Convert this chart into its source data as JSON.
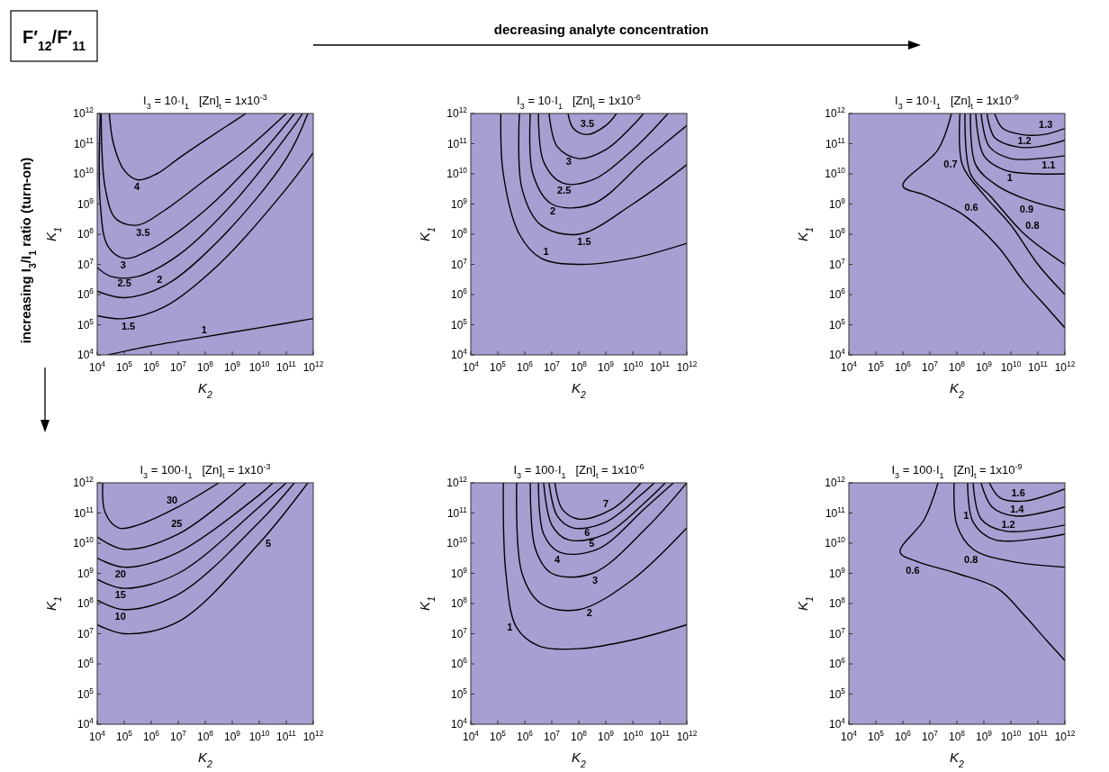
{
  "chart_data": [
    {
      "type": "line",
      "title": "I$_{3}$ = 10·I$_{1}$   [Zn]$_{t}$ = 1x10$^{-3}$",
      "xlabel": "K$_{2}$",
      "ylabel": "K$_{1}$",
      "log": "xy",
      "xlim": [
        10000.0,
        1000000000000.0
      ],
      "ylim": [
        10000.0,
        1000000000000.0
      ],
      "xticks": [
        {
          "value": 10000.0,
          "label": "10$^{4}$"
        },
        {
          "value": 100000.0,
          "label": "10$^{5}$"
        },
        {
          "value": 1000000.0,
          "label": "10$^{6}$"
        },
        {
          "value": 10000000.0,
          "label": "10$^{7}$"
        },
        {
          "value": 100000000.0,
          "label": "10$^{8}$"
        },
        {
          "value": 1000000000.0,
          "label": "10$^{9}$"
        },
        {
          "value": 10000000000.0,
          "label": "10$^{10}$"
        },
        {
          "value": 100000000000.0,
          "label": "10$^{11}$"
        },
        {
          "value": 1000000000000.0,
          "label": "10$^{12}$"
        }
      ],
      "yticks": [
        {
          "value": 10000.0,
          "label": "10$^{4}$"
        },
        {
          "value": 100000.0,
          "label": "10$^{5}$"
        },
        {
          "value": 1000000.0,
          "label": "10$^{6}$"
        },
        {
          "value": 10000000.0,
          "label": "10$^{7}$"
        },
        {
          "value": 100000000.0,
          "label": "10$^{8}$"
        },
        {
          "value": 1000000000.0,
          "label": "10$^{9}$"
        },
        {
          "value": 10000000000.0,
          "label": "10$^{10}$"
        },
        {
          "value": 100000000000.0,
          "label": "10$^{11}$"
        },
        {
          "value": 1000000000000.0,
          "label": "10$^{12}$"
        }
      ],
      "annotations": [
        "F′$_{12}$/F′$_{11}$",
        "decreasing analyte concentration",
        "increasing I$_{3}$/I$_{1}$ ratio (turn-on)"
      ],
      "series": [
        {
          "name": "4",
          "color": "#000000",
          "x": [
            28000.0,
            40000.0,
            100000.0,
            320000.0,
            1600000.0,
            10000000.0,
            100000000.0,
            3200000000.0
          ],
          "values": [
            1000000000000.0,
            100000000000.0,
            13000000000.0,
            6300000000.0,
            10000000000.0,
            32000000000.0,
            130000000000.0,
            1000000000000.0
          ]
        },
        {
          "name": "3.5",
          "color": "#000000",
          "x": [
            14000.0,
            20000.0,
            50000.0,
            320000.0,
            3200000.0,
            100000000.0,
            3200000000.0,
            100000000000.0
          ],
          "values": [
            1000000000000.0,
            3200000000.0,
            320000000.0,
            200000000.0,
            630000000.0,
            6300000000.0,
            63000000000.0,
            1000000000000.0
          ]
        },
        {
          "name": "3",
          "color": "#000000",
          "x": [
            13000.0,
            13000.0,
            25000.0,
            100000.0,
            1000000.0,
            100000000.0,
            10000000000.0,
            200000000000.0
          ],
          "values": [
            1000000000000.0,
            1000000000.0,
            40000000.0,
            16000000.0,
            32000000.0,
            630000000.0,
            40000000000.0,
            1000000000000.0
          ]
        },
        {
          "name": "2.5",
          "color": "#000000",
          "x": [
            10000.0,
            32000.0,
            320000.0,
            10000000.0,
            1000000000.0,
            200000000000.0,
            400000000000.0
          ],
          "values": [
            7900000.0,
            4000000.0,
            4000000.0,
            20000000.0,
            1000000000.0,
            400000000000.0,
            1000000000000.0
          ]
        },
        {
          "name": "2",
          "color": "#000000",
          "x": [
            10000.0,
            100000.0,
            3200000.0,
            320000000.0,
            100000000000.0,
            630000000000.0
          ],
          "values": [
            1300000.0,
            790000.0,
            2000000.0,
            63000000.0,
            32000000000.0,
            1000000000000.0
          ]
        },
        {
          "name": "1.5",
          "color": "#000000",
          "x": [
            10000.0,
            100000.0,
            3200000.0,
            320000000.0,
            100000000000.0,
            1000000000000.0
          ],
          "values": [
            200000.0,
            160000.0,
            400000.0,
            10000000.0,
            3200000000.0,
            50000000000.0
          ]
        },
        {
          "name": "1",
          "color": "#000000",
          "x": [
            25000.0,
            1000000.0,
            100000000.0,
            10000000000.0,
            1000000000000.0
          ],
          "values": [
            10000.0,
            20000.0,
            40000.0,
            79000.0,
            160000.0
          ]
        }
      ]
    },
    {
      "type": "line",
      "title": "I$_{3}$ = 10·I$_{1}$   [Zn]$_{t}$ = 1x10$^{-6}$",
      "xlabel": "K$_{2}$",
      "ylabel": "K$_{1}$",
      "log": "xy",
      "xlim": [
        10000.0,
        1000000000000.0
      ],
      "ylim": [
        10000.0,
        1000000000000.0
      ],
      "xticks": [
        {
          "value": 10000.0,
          "label": "10$^{4}$"
        },
        {
          "value": 100000.0,
          "label": "10$^{5}$"
        },
        {
          "value": 1000000.0,
          "label": "10$^{6}$"
        },
        {
          "value": 10000000.0,
          "label": "10$^{7}$"
        },
        {
          "value": 100000000.0,
          "label": "10$^{8}$"
        },
        {
          "value": 1000000000.0,
          "label": "10$^{9}$"
        },
        {
          "value": 10000000000.0,
          "label": "10$^{10}$"
        },
        {
          "value": 100000000000.0,
          "label": "10$^{11}$"
        },
        {
          "value": 1000000000000.0,
          "label": "10$^{12}$"
        }
      ],
      "yticks": [
        {
          "value": 10000.0,
          "label": "10$^{4}$"
        },
        {
          "value": 100000.0,
          "label": "10$^{5}$"
        },
        {
          "value": 1000000.0,
          "label": "10$^{6}$"
        },
        {
          "value": 10000000.0,
          "label": "10$^{7}$"
        },
        {
          "value": 100000000.0,
          "label": "10$^{8}$"
        },
        {
          "value": 1000000000.0,
          "label": "10$^{9}$"
        },
        {
          "value": 10000000000.0,
          "label": "10$^{10}$"
        },
        {
          "value": 100000000000.0,
          "label": "10$^{11}$"
        },
        {
          "value": 1000000000000.0,
          "label": "10$^{12}$"
        }
      ],
      "series": [
        {
          "name": "3.5",
          "color": "#000000",
          "x": [
            40000000.0,
            63000000.0,
            200000000.0,
            1000000000.0,
            2500000000.0
          ],
          "values": [
            1000000000000.0,
            320000000000.0,
            200000000000.0,
            400000000000.0,
            1000000000000.0
          ]
        },
        {
          "name": "3",
          "color": "#000000",
          "x": [
            7900000.0,
            16000000.0,
            100000000.0,
            1000000000.0,
            10000000000.0,
            25000000000.0
          ],
          "values": [
            1000000000000.0,
            79000000000.0,
            32000000000.0,
            63000000000.0,
            400000000000.0,
            1000000000000.0
          ]
        },
        {
          "name": "2.5",
          "color": "#000000",
          "x": [
            3200000.0,
            5000000.0,
            25000000.0,
            320000000.0,
            10000000000.0,
            200000000000.0
          ],
          "values": [
            1000000000000.0,
            25000000000.0,
            5000000000.0,
            6300000000.0,
            63000000000.0,
            1000000000000.0
          ]
        },
        {
          "name": "2",
          "color": "#000000",
          "x": [
            1600000.0,
            2000000.0,
            10000000.0,
            320000000.0,
            32000000000.0,
            1000000000000.0
          ],
          "values": [
            1000000000000.0,
            10000000000.0,
            1000000000.0,
            1000000000.0,
            32000000000.0,
            400000000000.0
          ]
        },
        {
          "name": "1.5",
          "color": "#000000",
          "x": [
            630000.0,
            790000.0,
            4000000.0,
            100000000.0,
            10000000000.0,
            1000000000000.0
          ],
          "values": [
            1000000000000.0,
            3200000000.0,
            200000000.0,
            100000000.0,
            1000000000.0,
            20000000000.0
          ]
        },
        {
          "name": "1",
          "color": "#000000",
          "x": [
            130000.0,
            160000.0,
            630000.0,
            4000000.0,
            100000000.0,
            10000000000.0,
            1000000000000.0
          ],
          "values": [
            1000000000000.0,
            10000000000.0,
            100000000.0,
            16000000.0,
            10000000.0,
            16000000.0,
            50000000.0
          ]
        }
      ]
    },
    {
      "type": "line",
      "title": "I$_{3}$ = 10·I$_{1}$   [Zn]$_{t}$ = 1x10$^{-9}$",
      "xlabel": "K$_{2}$",
      "ylabel": "K$_{1}$",
      "log": "xy",
      "xlim": [
        10000.0,
        1000000000000.0
      ],
      "ylim": [
        10000.0,
        1000000000000.0
      ],
      "xticks": [
        {
          "value": 10000.0,
          "label": "10$^{4}$"
        },
        {
          "value": 100000.0,
          "label": "10$^{5}$"
        },
        {
          "value": 1000000.0,
          "label": "10$^{6}$"
        },
        {
          "value": 10000000.0,
          "label": "10$^{7}$"
        },
        {
          "value": 100000000.0,
          "label": "10$^{8}$"
        },
        {
          "value": 1000000000.0,
          "label": "10$^{9}$"
        },
        {
          "value": 10000000000.0,
          "label": "10$^{10}$"
        },
        {
          "value": 100000000000.0,
          "label": "10$^{11}$"
        },
        {
          "value": 1000000000000.0,
          "label": "10$^{12}$"
        }
      ],
      "yticks": [
        {
          "value": 10000.0,
          "label": "10$^{4}$"
        },
        {
          "value": 100000.0,
          "label": "10$^{5}$"
        },
        {
          "value": 1000000.0,
          "label": "10$^{6}$"
        },
        {
          "value": 10000000.0,
          "label": "10$^{7}$"
        },
        {
          "value": 100000000.0,
          "label": "10$^{8}$"
        },
        {
          "value": 1000000000.0,
          "label": "10$^{9}$"
        },
        {
          "value": 10000000000.0,
          "label": "10$^{10}$"
        },
        {
          "value": 100000000000.0,
          "label": "10$^{11}$"
        },
        {
          "value": 1000000000000.0,
          "label": "10$^{12}$"
        }
      ],
      "series": [
        {
          "name": "1.3",
          "color": "#000000",
          "x": [
            2500000000.0,
            5000000000.0,
            25000000000.0,
            160000000000.0,
            1000000000000.0
          ],
          "values": [
            1000000000000.0,
            320000000000.0,
            200000000000.0,
            200000000000.0,
            320000000000.0
          ]
        },
        {
          "name": "1.2",
          "color": "#000000",
          "x": [
            1300000000.0,
            2500000000.0,
            16000000000.0,
            100000000000.0,
            1000000000000.0
          ],
          "values": [
            1000000000000.0,
            160000000000.0,
            79000000000.0,
            79000000000.0,
            130000000000.0
          ]
        },
        {
          "name": "1.1",
          "color": "#000000",
          "x": [
            790000000.0,
            1600000000.0,
            10000000000.0,
            100000000000.0,
            1000000000000.0
          ],
          "values": [
            1000000000000.0,
            79000000000.0,
            32000000000.0,
            32000000000.0,
            40000000000.0
          ]
        },
        {
          "name": "1",
          "color": "#000000",
          "x": [
            500000000.0,
            1000000000.0,
            6300000000.0,
            100000000000.0,
            1000000000000.0
          ],
          "values": [
            1000000000000.0,
            40000000000.0,
            13000000000.0,
            10000000000.0,
            10000000000.0
          ]
        },
        {
          "name": "0.9",
          "color": "#000000",
          "x": [
            320000000.0,
            500000000.0,
            3200000000.0,
            50000000000.0,
            1000000000000.0
          ],
          "values": [
            1000000000000.0,
            20000000000.0,
            4000000000.0,
            1300000000.0,
            630000000.0
          ]
        },
        {
          "name": "0.8",
          "color": "#000000",
          "x": [
            200000000.0,
            320000000.0,
            2000000000.0,
            32000000000.0,
            1000000000000.0
          ],
          "values": [
            1000000000000.0,
            10000000000.0,
            1600000000.0,
            100000000.0,
            10000000.0
          ]
        },
        {
          "name": "0.7",
          "color": "#000000",
          "x": [
            130000000.0,
            160000000.0,
            1000000000.0,
            10000000000.0,
            100000000000.0,
            1000000000000.0
          ],
          "values": [
            1000000000000.0,
            20000000000.0,
            2000000000.0,
            200000000.0,
            10000000.0,
            1000000.0
          ]
        },
        {
          "name": "0.6",
          "color": "#000000",
          "x": [
            63000000.0,
            20000000.0,
            1000000.0,
            6300000.0,
            200000000.0,
            3200000000.0,
            32000000000.0,
            200000000000.0,
            1000000000000.0
          ],
          "values": [
            1000000000000.0,
            63000000000.0,
            4000000000.0,
            2000000000.0,
            400000000.0,
            40000000.0,
            2500000.0,
            400000.0,
            79000.0
          ]
        }
      ]
    },
    {
      "type": "line",
      "title": "I$_{3}$ = 100·I$_{1}$   [Zn]$_{t}$ = 1x10$^{-3}$",
      "xlabel": "K$_{2}$",
      "ylabel": "K$_{1}$",
      "log": "xy",
      "xlim": [
        10000.0,
        1000000000000.0
      ],
      "ylim": [
        10000.0,
        1000000000000.0
      ],
      "xticks": [
        {
          "value": 10000.0,
          "label": "10$^{4}$"
        },
        {
          "value": 100000.0,
          "label": "10$^{5}$"
        },
        {
          "value": 1000000.0,
          "label": "10$^{6}$"
        },
        {
          "value": 10000000.0,
          "label": "10$^{7}$"
        },
        {
          "value": 100000000.0,
          "label": "10$^{8}$"
        },
        {
          "value": 1000000000.0,
          "label": "10$^{9}$"
        },
        {
          "value": 10000000000.0,
          "label": "10$^{10}$"
        },
        {
          "value": 100000000000.0,
          "label": "10$^{11}$"
        },
        {
          "value": 1000000000000.0,
          "label": "10$^{12}$"
        }
      ],
      "yticks": [
        {
          "value": 10000.0,
          "label": "10$^{4}$"
        },
        {
          "value": 100000.0,
          "label": "10$^{5}$"
        },
        {
          "value": 1000000.0,
          "label": "10$^{6}$"
        },
        {
          "value": 10000000.0,
          "label": "10$^{7}$"
        },
        {
          "value": 100000000.0,
          "label": "10$^{8}$"
        },
        {
          "value": 1000000000.0,
          "label": "10$^{9}$"
        },
        {
          "value": 10000000000.0,
          "label": "10$^{10}$"
        },
        {
          "value": 100000000000.0,
          "label": "10$^{11}$"
        },
        {
          "value": 1000000000000.0,
          "label": "10$^{12}$"
        }
      ],
      "series": [
        {
          "name": "30",
          "color": "#000000",
          "x": [
            16000.0,
            20000.0,
            63000.0,
            320000.0,
            10000000.0,
            320000000.0
          ],
          "values": [
            1000000000000.0,
            100000000000.0,
            32000000000.0,
            40000000000.0,
            160000000000.0,
            1000000000000.0
          ]
        },
        {
          "name": "25",
          "color": "#000000",
          "x": [
            10000.0,
            100000.0,
            10000000.0,
            3200000000.0
          ],
          "values": [
            16000000000.0,
            6300000000.0,
            20000000000.0,
            1000000000000.0
          ]
        },
        {
          "name": "20",
          "color": "#000000",
          "x": [
            10000.0,
            100000.0,
            10000000.0,
            10000000000.0,
            32000000000.0
          ],
          "values": [
            3200000000.0,
            1600000000.0,
            5000000000.0,
            400000000000.0,
            1000000000000.0
          ]
        },
        {
          "name": "15",
          "color": "#000000",
          "x": [
            10000.0,
            100000.0,
            10000000.0,
            10000000000.0,
            100000000000.0
          ],
          "values": [
            630000000.0,
            320000000.0,
            1000000000.0,
            160000000000.0,
            1000000000000.0
          ]
        },
        {
          "name": "10",
          "color": "#000000",
          "x": [
            10000.0,
            100000.0,
            10000000.0,
            10000000000.0,
            200000000000.0
          ],
          "values": [
            130000000.0,
            63000000.0,
            200000000.0,
            50000000000.0,
            1000000000000.0
          ]
        },
        {
          "name": "5",
          "color": "#000000",
          "x": [
            10000.0,
            100000.0,
            10000000.0,
            10000000000.0,
            630000000000.0
          ],
          "values": [
            20000000.0,
            10000000.0,
            25000000.0,
            10000000000.0,
            1000000000000.0
          ]
        }
      ]
    },
    {
      "type": "line",
      "title": "I$_{3}$ = 100·I$_{1}$   [Zn]$_{t}$ = 1x10$^{-6}$",
      "xlabel": "K$_{2}$",
      "ylabel": "K$_{1}$",
      "log": "xy",
      "xlim": [
        10000.0,
        1000000000000.0
      ],
      "ylim": [
        10000.0,
        1000000000000.0
      ],
      "xticks": [
        {
          "value": 10000.0,
          "label": "10$^{4}$"
        },
        {
          "value": 100000.0,
          "label": "10$^{5}$"
        },
        {
          "value": 1000000.0,
          "label": "10$^{6}$"
        },
        {
          "value": 10000000.0,
          "label": "10$^{7}$"
        },
        {
          "value": 100000000.0,
          "label": "10$^{8}$"
        },
        {
          "value": 1000000000.0,
          "label": "10$^{9}$"
        },
        {
          "value": 10000000000.0,
          "label": "10$^{10}$"
        },
        {
          "value": 100000000000.0,
          "label": "10$^{11}$"
        },
        {
          "value": 1000000000000.0,
          "label": "10$^{12}$"
        }
      ],
      "yticks": [
        {
          "value": 10000.0,
          "label": "10$^{4}$"
        },
        {
          "value": 100000.0,
          "label": "10$^{5}$"
        },
        {
          "value": 1000000.0,
          "label": "10$^{6}$"
        },
        {
          "value": 10000000.0,
          "label": "10$^{7}$"
        },
        {
          "value": 100000000.0,
          "label": "10$^{8}$"
        },
        {
          "value": 1000000000.0,
          "label": "10$^{9}$"
        },
        {
          "value": 10000000000.0,
          "label": "10$^{10}$"
        },
        {
          "value": 100000000000.0,
          "label": "10$^{11}$"
        },
        {
          "value": 1000000000000.0,
          "label": "10$^{12}$"
        }
      ],
      "series": [
        {
          "name": "7",
          "color": "#000000",
          "x": [
            13000000.0,
            25000000.0,
            100000000.0,
            1600000000.0,
            20000000000.0
          ],
          "values": [
            1000000000000.0,
            130000000000.0,
            63000000000.0,
            130000000000.0,
            1000000000000.0
          ]
        },
        {
          "name": "6",
          "color": "#000000",
          "x": [
            7900000.0,
            16000000.0,
            63000000.0,
            1000000000.0,
            20000000000.0,
            63000000000.0
          ],
          "values": [
            1000000000000.0,
            79000000000.0,
            32000000000.0,
            50000000000.0,
            400000000000.0,
            1000000000000.0
          ]
        },
        {
          "name": "5",
          "color": "#000000",
          "x": [
            5000000.0,
            10000000.0,
            40000000.0,
            1000000000.0,
            32000000000.0,
            160000000000.0
          ],
          "values": [
            1000000000000.0,
            40000000000.0,
            13000000000.0,
            20000000000.0,
            250000000000.0,
            1000000000000.0
          ]
        },
        {
          "name": "4",
          "color": "#000000",
          "x": [
            3200000.0,
            5000000.0,
            20000000.0,
            500000000.0,
            32000000000.0,
            320000000000.0
          ],
          "values": [
            1000000000000.0,
            20000000000.0,
            5000000000.0,
            6300000000.0,
            160000000000.0,
            1000000000000.0
          ]
        },
        {
          "name": "3",
          "color": "#000000",
          "x": [
            1600000.0,
            2500000.0,
            10000000.0,
            320000000.0,
            32000000000.0,
            1000000000000.0
          ],
          "values": [
            1000000000000.0,
            6300000000.0,
            1000000000.0,
            1000000000.0,
            32000000000.0,
            1000000000000.0
          ]
        },
        {
          "name": "2",
          "color": "#000000",
          "x": [
            500000.0,
            790000.0,
            4000000.0,
            100000000.0,
            10000000000.0,
            1000000000000.0
          ],
          "values": [
            1000000000000.0,
            1000000000.0,
            100000000.0,
            63000000.0,
            630000000.0,
            32000000000.0
          ]
        },
        {
          "name": "1",
          "color": "#000000",
          "x": [
            160000.0,
            200000.0,
            500000.0,
            3200000.0,
            100000000.0,
            10000000000.0,
            1000000000000.0
          ],
          "values": [
            1000000000000.0,
            1000000000.0,
            16000000.0,
            4000000.0,
            3200000.0,
            6300000.0,
            20000000.0
          ]
        }
      ]
    },
    {
      "type": "line",
      "title": "I$_{3}$ = 100·I$_{1}$   [Zn]$_{t}$ = 1x10$^{-9}$",
      "xlabel": "K$_{2}$",
      "ylabel": "K$_{1}$",
      "log": "xy",
      "xlim": [
        10000.0,
        1000000000000.0
      ],
      "ylim": [
        10000.0,
        1000000000000.0
      ],
      "xticks": [
        {
          "value": 10000.0,
          "label": "10$^{4}$"
        },
        {
          "value": 100000.0,
          "label": "10$^{5}$"
        },
        {
          "value": 1000000.0,
          "label": "10$^{6}$"
        },
        {
          "value": 10000000.0,
          "label": "10$^{7}$"
        },
        {
          "value": 100000000.0,
          "label": "10$^{8}$"
        },
        {
          "value": 1000000000.0,
          "label": "10$^{9}$"
        },
        {
          "value": 10000000000.0,
          "label": "10$^{10}$"
        },
        {
          "value": 100000000000.0,
          "label": "10$^{11}$"
        },
        {
          "value": 1000000000000.0,
          "label": "10$^{12}$"
        }
      ],
      "yticks": [
        {
          "value": 10000.0,
          "label": "10$^{4}$"
        },
        {
          "value": 100000.0,
          "label": "10$^{5}$"
        },
        {
          "value": 1000000.0,
          "label": "10$^{6}$"
        },
        {
          "value": 10000000.0,
          "label": "10$^{7}$"
        },
        {
          "value": 100000000.0,
          "label": "10$^{8}$"
        },
        {
          "value": 1000000000.0,
          "label": "10$^{9}$"
        },
        {
          "value": 10000000000.0,
          "label": "10$^{10}$"
        },
        {
          "value": 100000000000.0,
          "label": "10$^{11}$"
        },
        {
          "value": 1000000000000.0,
          "label": "10$^{12}$"
        }
      ],
      "series": [
        {
          "name": "1.6",
          "color": "#000000",
          "x": [
            1600000000.0,
            4000000000.0,
            32000000000.0,
            1000000000000.0
          ],
          "values": [
            1000000000000.0,
            320000000000.0,
            250000000000.0,
            630000000000.0
          ]
        },
        {
          "name": "1.4",
          "color": "#000000",
          "x": [
            790000000.0,
            2000000000.0,
            16000000000.0,
            1000000000000.0
          ],
          "values": [
            1000000000000.0,
            160000000000.0,
            79000000000.0,
            160000000000.0
          ]
        },
        {
          "name": "1.2",
          "color": "#000000",
          "x": [
            400000000.0,
            790000000.0,
            6300000000.0,
            1000000000000.0
          ],
          "values": [
            1000000000000.0,
            63000000000.0,
            25000000000.0,
            40000000000.0
          ]
        },
        {
          "name": "1",
          "color": "#000000",
          "x": [
            250000000.0,
            400000000.0,
            2500000000.0,
            1000000000000.0
          ],
          "values": [
            1000000000000.0,
            50000000000.0,
            13000000000.0,
            20000000000.0
          ]
        },
        {
          "name": "0.8",
          "color": "#000000",
          "x": [
            79000000.0,
            100000000.0,
            400000000.0,
            10000000000.0,
            1000000000000.0
          ],
          "values": [
            1000000000000.0,
            40000000000.0,
            6300000000.0,
            2500000000.0,
            1600000000.0
          ]
        },
        {
          "name": "0.6",
          "color": "#000000",
          "x": [
            20000000.0,
            6300000.0,
            790000.0,
            3200000.0,
            100000000.0,
            3200000000.0,
            32000000000.0,
            200000000000.0,
            1000000000000.0
          ],
          "values": [
            1000000000000.0,
            63000000000.0,
            5000000000.0,
            2500000000.0,
            1000000000.0,
            320000000.0,
            40000000.0,
            6300000.0,
            1300000.0
          ]
        }
      ]
    }
  ]
}
